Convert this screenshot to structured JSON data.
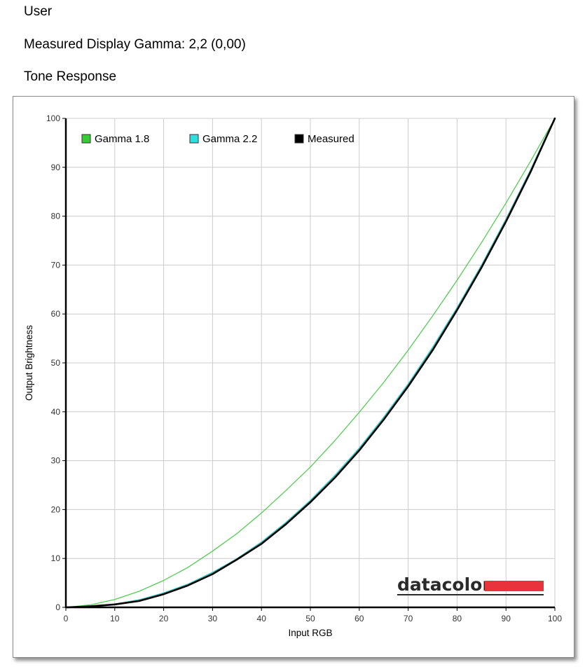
{
  "header": {
    "user_label": "User",
    "gamma_summary": "Measured Display Gamma: 2,2 (0,00)",
    "section_title": "Tone Response"
  },
  "brand": {
    "logo_text": "datacolor",
    "logo_bar_color": "#e8333c"
  },
  "chart_data": {
    "type": "line",
    "title": "",
    "xlabel": "Input RGB",
    "ylabel": "Output Brightness",
    "xlim": [
      0,
      100
    ],
    "ylim": [
      0,
      100
    ],
    "x_ticks": [
      0,
      10,
      20,
      30,
      40,
      50,
      60,
      70,
      80,
      90,
      100
    ],
    "y_ticks": [
      0,
      10,
      20,
      30,
      40,
      50,
      60,
      70,
      80,
      90,
      100
    ],
    "grid": true,
    "legend_position": "top-left",
    "x": [
      0,
      5,
      10,
      15,
      20,
      25,
      30,
      35,
      40,
      45,
      50,
      55,
      60,
      65,
      70,
      75,
      80,
      85,
      90,
      95,
      100
    ],
    "series": [
      {
        "name": "Gamma 1.8",
        "color": "#33cc33",
        "stroke_color": "#55cc55",
        "width": 1.3,
        "values": [
          0,
          0.5,
          1.6,
          3.3,
          5.5,
          8.2,
          11.5,
          15.1,
          19.3,
          23.9,
          28.7,
          34.1,
          39.9,
          46.0,
          52.6,
          59.6,
          66.9,
          74.6,
          82.7,
          91.2,
          100
        ]
      },
      {
        "name": "Gamma 2.2",
        "color": "#33dddd",
        "stroke_color": "#33cccc",
        "width": 2.2,
        "values": [
          0,
          0.1,
          0.6,
          1.5,
          2.9,
          4.7,
          7.1,
          9.9,
          13.3,
          17.3,
          21.8,
          26.9,
          32.5,
          38.8,
          45.6,
          53.1,
          61.2,
          69.9,
          79.3,
          89.3,
          100
        ]
      },
      {
        "name": "Measured",
        "color": "#000000",
        "stroke_color": "#000000",
        "width": 2.6,
        "values": [
          0,
          0.2,
          0.6,
          1.3,
          2.7,
          4.5,
          6.8,
          9.8,
          13.0,
          17.0,
          21.5,
          26.5,
          32.1,
          38.4,
          45.2,
          52.6,
          60.8,
          69.5,
          78.9,
          89.0,
          100
        ]
      }
    ]
  }
}
